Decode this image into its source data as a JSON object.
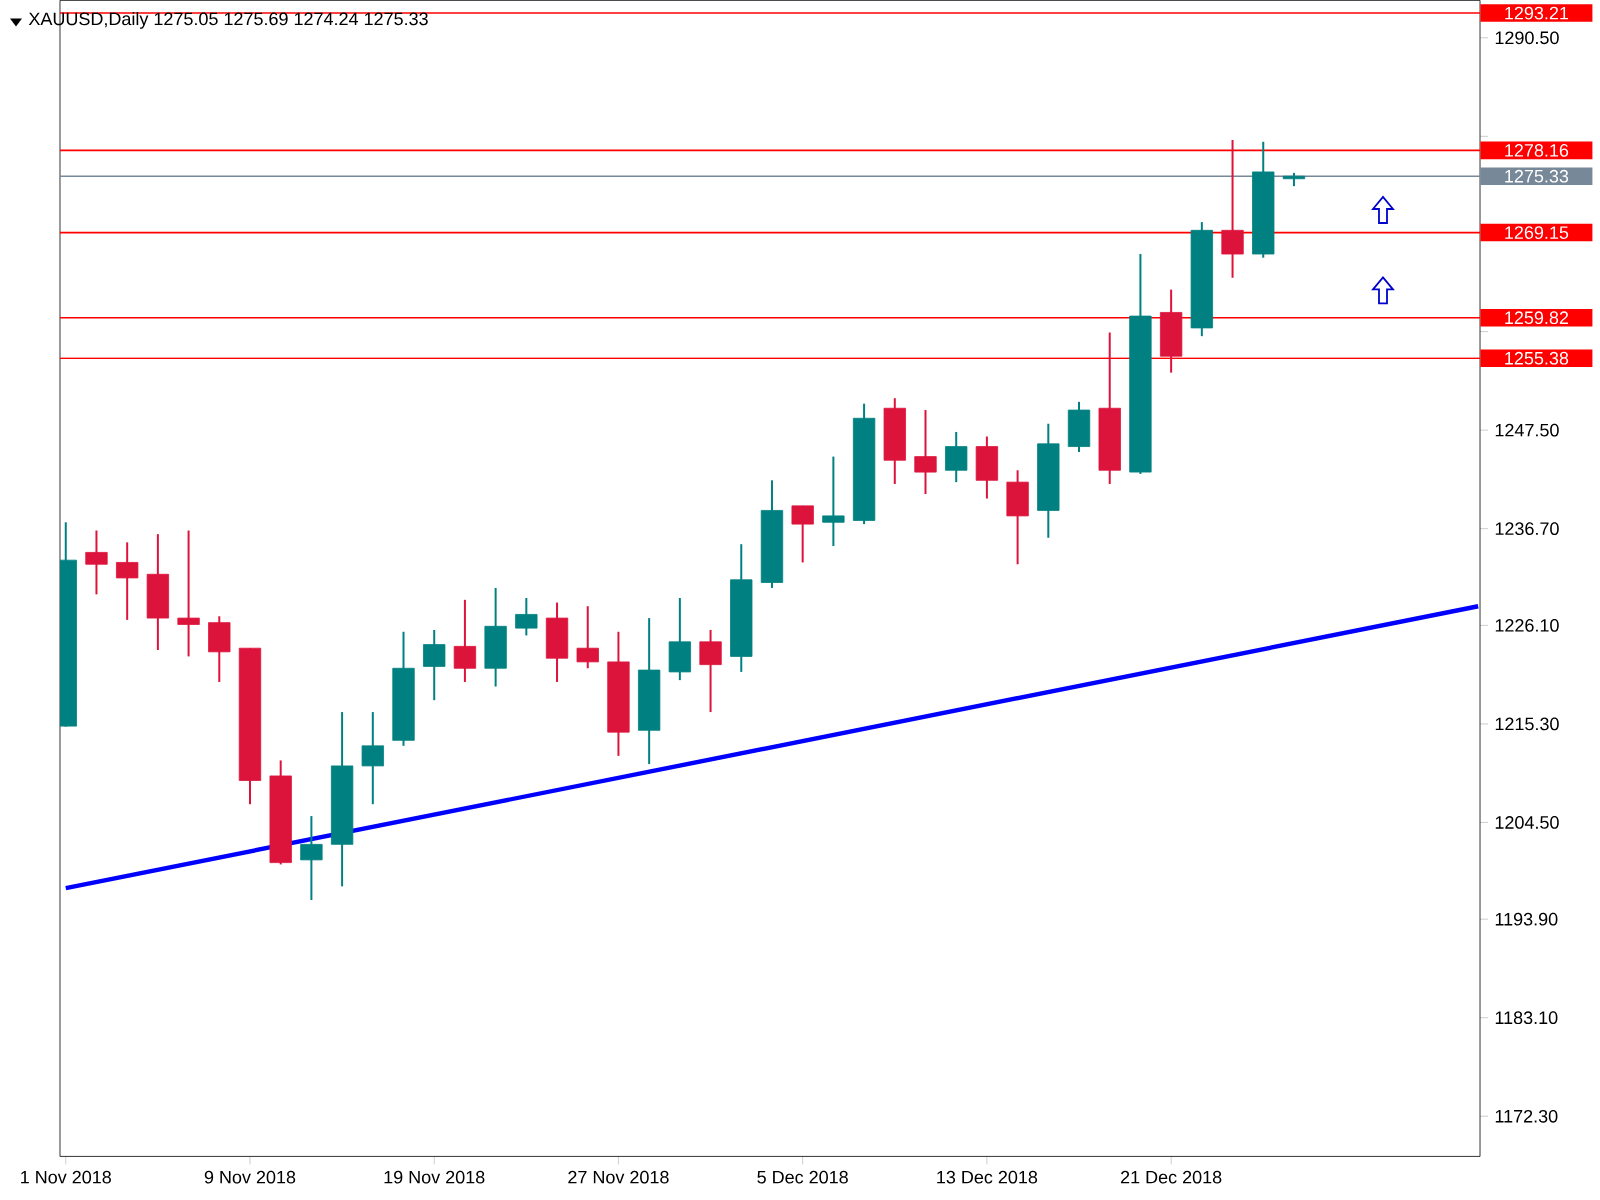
{
  "chart_data": {
    "type": "candlestick",
    "title": "XAUUSD,Daily 1275.05 1275.69 1274.24 1275.33",
    "categories": [
      "1 Nov 2018",
      null,
      null,
      null,
      null,
      null,
      "9 Nov 2018",
      null,
      null,
      null,
      null,
      null,
      "19 Nov 2018",
      null,
      null,
      null,
      null,
      null,
      "27 Nov 2018",
      null,
      null,
      null,
      null,
      null,
      "5 Dec 2018",
      null,
      null,
      null,
      null,
      null,
      "13 Dec 2018",
      null,
      null,
      null,
      null,
      null,
      "21 Dec 2018",
      null,
      null,
      null,
      null,
      null,
      null,
      null,
      null,
      null,
      null
    ],
    "ohlc": [
      [
        1215.05,
        1237.4,
        1215.0,
        1233.25
      ],
      [
        1234.1,
        1236.5,
        1229.5,
        1232.8
      ],
      [
        1233.0,
        1235.2,
        1226.7,
        1231.3
      ],
      [
        1231.7,
        1236.1,
        1223.4,
        1226.9
      ],
      [
        1226.9,
        1236.5,
        1222.7,
        1226.2
      ],
      [
        1226.4,
        1227.1,
        1219.9,
        1223.2
      ],
      [
        1223.6,
        1223.6,
        1206.5,
        1209.1
      ],
      [
        1209.6,
        1211.3,
        1199.9,
        1200.1
      ],
      [
        1200.4,
        1205.2,
        1196.0,
        1202.1
      ],
      [
        1202.1,
        1216.6,
        1197.5,
        1210.7
      ],
      [
        1210.7,
        1216.6,
        1206.5,
        1212.9
      ],
      [
        1213.5,
        1225.4,
        1212.9,
        1221.4
      ],
      [
        1221.6,
        1225.6,
        1217.9,
        1224.0
      ],
      [
        1223.8,
        1228.9,
        1219.9,
        1221.4
      ],
      [
        1221.4,
        1230.2,
        1219.4,
        1226.0
      ],
      [
        1225.8,
        1229.1,
        1225.0,
        1227.3
      ],
      [
        1226.9,
        1228.6,
        1219.9,
        1222.5
      ],
      [
        1223.6,
        1228.2,
        1221.4,
        1222.1
      ],
      [
        1222.1,
        1225.4,
        1211.8,
        1214.4
      ],
      [
        1214.6,
        1226.9,
        1210.9,
        1221.2
      ],
      [
        1221.0,
        1229.1,
        1220.1,
        1224.3
      ],
      [
        1224.3,
        1225.6,
        1216.6,
        1221.8
      ],
      [
        1222.7,
        1235.0,
        1221.0,
        1231.1
      ],
      [
        1230.8,
        1242.0,
        1230.2,
        1238.7
      ],
      [
        1239.2,
        1239.2,
        1233.0,
        1237.2
      ],
      [
        1237.4,
        1244.6,
        1234.8,
        1238.1
      ],
      [
        1237.6,
        1250.4,
        1237.2,
        1248.8
      ],
      [
        1249.9,
        1251.0,
        1241.6,
        1244.2
      ],
      [
        1244.6,
        1249.7,
        1240.5,
        1242.9
      ],
      [
        1243.1,
        1247.3,
        1241.8,
        1245.7
      ],
      [
        1245.7,
        1246.8,
        1240.0,
        1242.0
      ],
      [
        1241.8,
        1243.1,
        1232.8,
        1238.1
      ],
      [
        1238.7,
        1248.2,
        1235.7,
        1246.0
      ],
      [
        1245.7,
        1250.6,
        1245.1,
        1249.7
      ],
      [
        1249.9,
        1258.2,
        1241.6,
        1243.1
      ],
      [
        1242.9,
        1266.8,
        1242.7,
        1260.0
      ],
      [
        1260.4,
        1262.9,
        1253.8,
        1255.6
      ],
      [
        1258.7,
        1270.3,
        1257.8,
        1269.4
      ],
      [
        1269.4,
        1279.3,
        1264.2,
        1266.8
      ],
      [
        1266.8,
        1279.1,
        1266.4,
        1275.8
      ],
      [
        1275.05,
        1275.69,
        1274.24,
        1275.33
      ],
      null,
      null,
      null,
      null,
      null,
      null
    ],
    "colors": [
      "#008080",
      "#dc143c",
      "#dc143c",
      "#dc143c",
      "#dc143c",
      "#dc143c",
      "#dc143c",
      "#dc143c",
      "#008080",
      "#008080",
      "#008080",
      "#008080",
      "#008080",
      "#dc143c",
      "#008080",
      "#008080",
      "#dc143c",
      "#dc143c",
      "#dc143c",
      "#008080",
      "#008080",
      "#dc143c",
      "#008080",
      "#008080",
      "#dc143c",
      "#008080",
      "#008080",
      "#dc143c",
      "#dc143c",
      "#008080",
      "#dc143c",
      "#dc143c",
      "#008080",
      "#008080",
      "#dc143c",
      "#008080",
      "#dc143c",
      "#008080",
      "#dc143c",
      "#008080",
      "#008080",
      null,
      null,
      null,
      null,
      null,
      null
    ],
    "series": [
      {
        "type": "line",
        "color": "#0000ff",
        "values": [
          1197.3,
          null,
          null,
          null,
          null,
          null,
          null,
          null,
          null,
          null,
          null,
          null,
          null,
          null,
          null,
          null,
          null,
          null,
          null,
          null,
          null,
          null,
          null,
          null,
          null,
          null,
          null,
          null,
          null,
          null,
          null,
          null,
          null,
          null,
          null,
          null,
          null,
          null,
          null,
          null,
          null,
          null,
          null,
          null,
          null,
          null,
          1228.2
        ]
      }
    ],
    "ylim": [
      1167.9,
      1294.6
    ],
    "yticks": [
      {
        "value": 1172.3,
        "label": "1172.30"
      },
      {
        "value": 1183.1,
        "label": "1183.10"
      },
      {
        "value": 1193.9,
        "label": "1193.90"
      },
      {
        "value": 1204.5,
        "label": "1204.50"
      },
      {
        "value": 1215.3,
        "label": "1215.30"
      },
      {
        "value": 1226.1,
        "label": "1226.10"
      },
      {
        "value": 1236.7,
        "label": "1236.70"
      },
      {
        "value": 1247.5,
        "label": "1247.50"
      },
      {
        "value": 1258.3,
        "label": null
      },
      {
        "value": 1279.7,
        "label": null
      },
      {
        "value": 1290.5,
        "label": "1290.50"
      }
    ],
    "ref_lines": [
      {
        "axis": "y",
        "value": 1293.21,
        "label": "1293.21",
        "color": "#ff0000"
      },
      {
        "axis": "y",
        "value": 1278.16,
        "label": "1278.16",
        "color": "#ff0000"
      },
      {
        "axis": "y",
        "value": 1275.33,
        "label": "1275.33",
        "color": "#778899"
      },
      {
        "axis": "y",
        "value": 1269.15,
        "label": "1269.15",
        "color": "#ff0000"
      },
      {
        "axis": "y",
        "value": 1259.82,
        "label": "1259.82",
        "color": "#ff0000"
      },
      {
        "axis": "y",
        "value": 1255.38,
        "label": "1255.38",
        "color": "#ff0000"
      }
    ],
    "grid": false
  }
}
